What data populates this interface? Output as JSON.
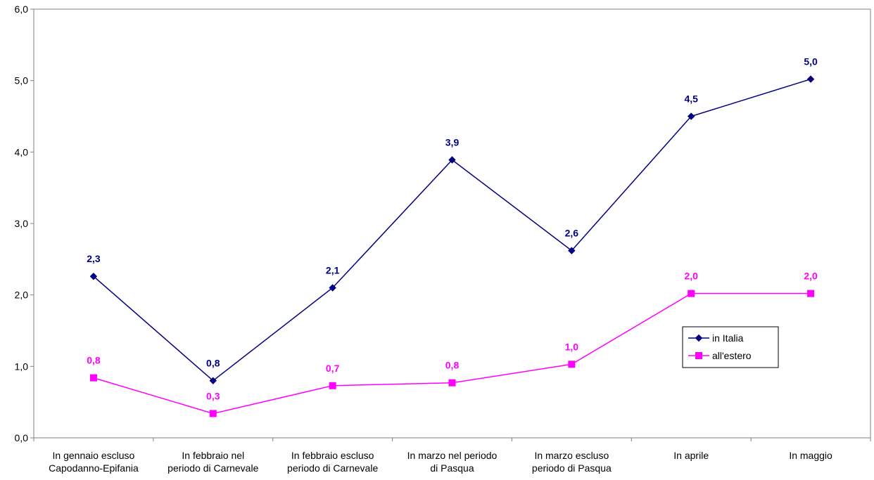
{
  "chart_data": {
    "type": "line",
    "title": "",
    "xlabel": "",
    "ylabel": "",
    "ylim": [
      0,
      6
    ],
    "y_ticks": [
      0,
      1,
      2,
      3,
      4,
      5,
      6
    ],
    "y_tick_labels": [
      "0,0",
      "1,0",
      "2,0",
      "3,0",
      "4,0",
      "5,0",
      "6,0"
    ],
    "grid": false,
    "legend_placement": "right",
    "categories": [
      [
        "In gennaio escluso",
        "Capodanno-Epifania"
      ],
      [
        "In febbraio nel",
        "periodo di Carnevale"
      ],
      [
        "In febbraio escluso",
        "periodo di Carnevale"
      ],
      [
        "In marzo nel periodo",
        "di Pasqua"
      ],
      [
        "In marzo escluso",
        "periodo di Pasqua"
      ],
      [
        "In aprile"
      ],
      [
        "In maggio"
      ]
    ],
    "series": [
      {
        "name": "in Italia",
        "color": "#000080",
        "marker": "diamond",
        "values": [
          2.26,
          0.8,
          2.1,
          3.89,
          2.62,
          4.5,
          5.02
        ],
        "labels": [
          "2,3",
          "0,8",
          "2,1",
          "3,9",
          "2,6",
          "4,5",
          "5,0"
        ]
      },
      {
        "name": "all'estero",
        "color": "#FF00FF",
        "marker": "square",
        "values": [
          0.84,
          0.34,
          0.73,
          0.77,
          1.03,
          2.02,
          2.02
        ],
        "labels": [
          "0,8",
          "0,3",
          "0,7",
          "0,8",
          "1,0",
          "2,0",
          "2,0"
        ]
      }
    ]
  }
}
